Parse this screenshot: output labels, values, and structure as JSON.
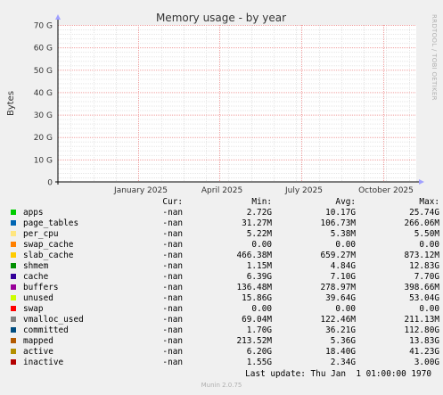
{
  "chart_data": {
    "type": "line",
    "title": "Memory usage - by year",
    "ylabel": "Bytes",
    "y_ticks": [
      "0",
      "10 G",
      "20 G",
      "30 G",
      "40 G",
      "50 G",
      "60 G",
      "70 G"
    ],
    "ylim": [
      0,
      70
    ],
    "x_ticks": [
      "January 2025",
      "April 2025",
      "July 2025",
      "October 2025"
    ],
    "grid": true,
    "series": []
  },
  "legend": {
    "headers": {
      "cur": "Cur:",
      "min": "Min:",
      "avg": "Avg:",
      "max": "Max:"
    },
    "rows": [
      {
        "name": "apps",
        "color": "#00cc00",
        "cur": "-nan",
        "min": "2.72G",
        "avg": "10.17G",
        "max": "25.74G"
      },
      {
        "name": "page_tables",
        "color": "#0066b3",
        "cur": "-nan",
        "min": "31.27M",
        "avg": "106.73M",
        "max": "266.06M"
      },
      {
        "name": "per_cpu",
        "color": "#ffe680",
        "cur": "-nan",
        "min": "5.22M",
        "avg": "5.38M",
        "max": "5.50M"
      },
      {
        "name": "swap_cache",
        "color": "#ff8000",
        "cur": "-nan",
        "min": "0.00",
        "avg": "0.00",
        "max": "0.00"
      },
      {
        "name": "slab_cache",
        "color": "#ffcc00",
        "cur": "-nan",
        "min": "466.38M",
        "avg": "659.27M",
        "max": "873.12M"
      },
      {
        "name": "shmem",
        "color": "#008f00",
        "cur": "-nan",
        "min": "1.15M",
        "avg": "4.84G",
        "max": "12.83G"
      },
      {
        "name": "cache",
        "color": "#330099",
        "cur": "-nan",
        "min": "6.39G",
        "avg": "7.10G",
        "max": "7.70G"
      },
      {
        "name": "buffers",
        "color": "#990099",
        "cur": "-nan",
        "min": "136.48M",
        "avg": "278.97M",
        "max": "398.66M"
      },
      {
        "name": "unused",
        "color": "#ccff00",
        "cur": "-nan",
        "min": "15.86G",
        "avg": "39.64G",
        "max": "53.04G"
      },
      {
        "name": "swap",
        "color": "#ff0000",
        "cur": "-nan",
        "min": "0.00",
        "avg": "0.00",
        "max": "0.00"
      },
      {
        "name": "vmalloc_used",
        "color": "#808080",
        "cur": "-nan",
        "min": "69.04M",
        "avg": "122.46M",
        "max": "211.13M"
      },
      {
        "name": "committed",
        "color": "#004d80",
        "cur": "-nan",
        "min": "1.70G",
        "avg": "36.21G",
        "max": "112.80G"
      },
      {
        "name": "mapped",
        "color": "#b35a00",
        "cur": "-nan",
        "min": "213.52M",
        "avg": "5.36G",
        "max": "13.83G"
      },
      {
        "name": "active",
        "color": "#b38f00",
        "cur": "-nan",
        "min": "6.20G",
        "avg": "18.40G",
        "max": "41.23G"
      },
      {
        "name": "inactive",
        "color": "#b30000",
        "cur": "-nan",
        "min": "1.55G",
        "avg": "2.34G",
        "max": "3.00G"
      }
    ]
  },
  "footer": {
    "last_update": "Last update: Thu Jan  1 01:00:00 1970",
    "version": "Munin 2.0.75"
  },
  "side_text": "RRDTOOL / TOBI OETIKER"
}
